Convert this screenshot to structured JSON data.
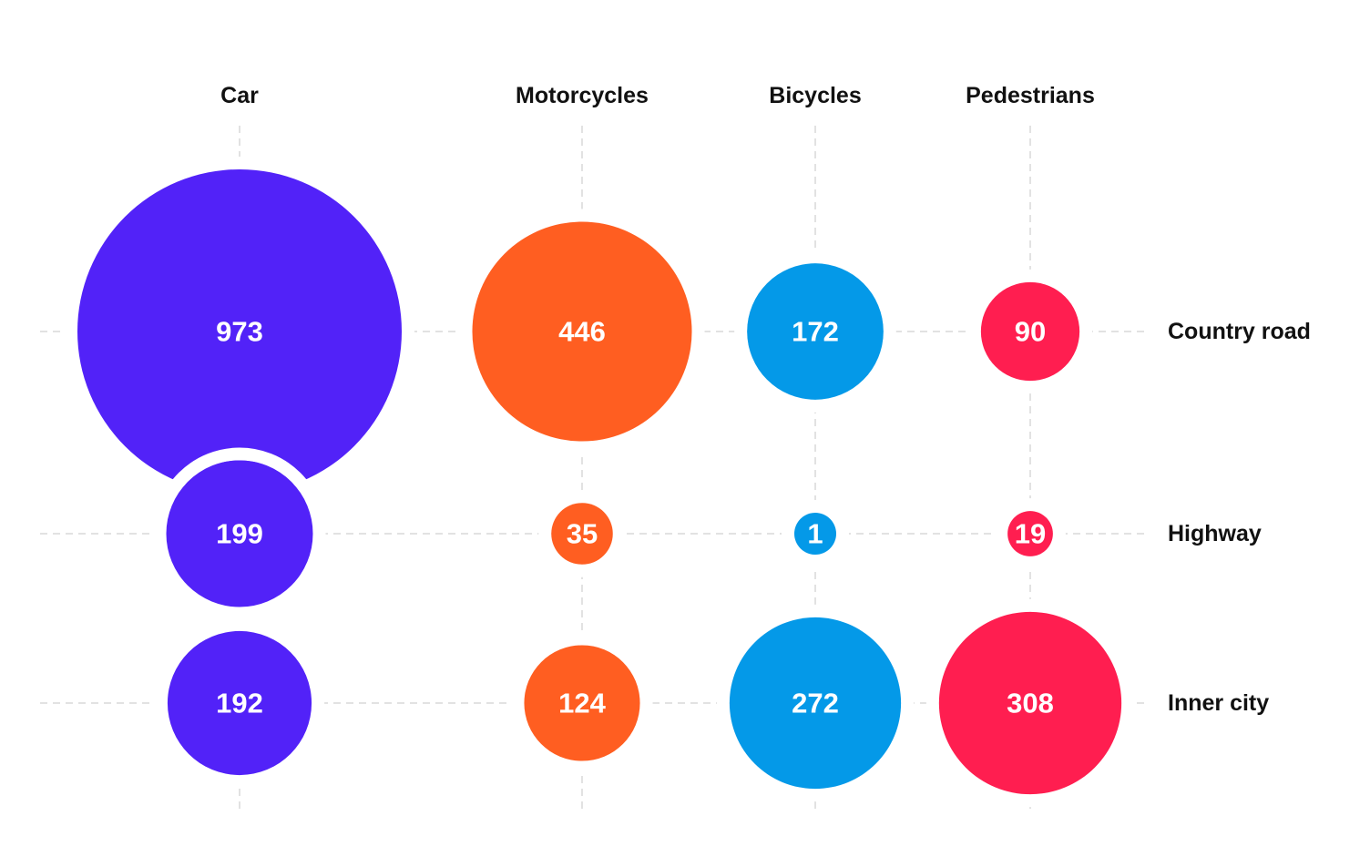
{
  "chart_data": {
    "type": "bubble-matrix",
    "title": "",
    "columns": [
      "Car",
      "Motorcycles",
      "Bicycles",
      "Pedestrians"
    ],
    "rows": [
      "Country road",
      "Highway",
      "Inner city"
    ],
    "colors": {
      "Car": "#5222f8",
      "Motorcycles": "#ff5e21",
      "Bicycles": "#0499e8",
      "Pedestrians": "#ff1e50"
    },
    "values": [
      [
        973,
        446,
        172,
        90
      ],
      [
        199,
        35,
        1,
        19
      ],
      [
        192,
        124,
        272,
        308
      ]
    ],
    "grid": true,
    "legend": "none"
  }
}
